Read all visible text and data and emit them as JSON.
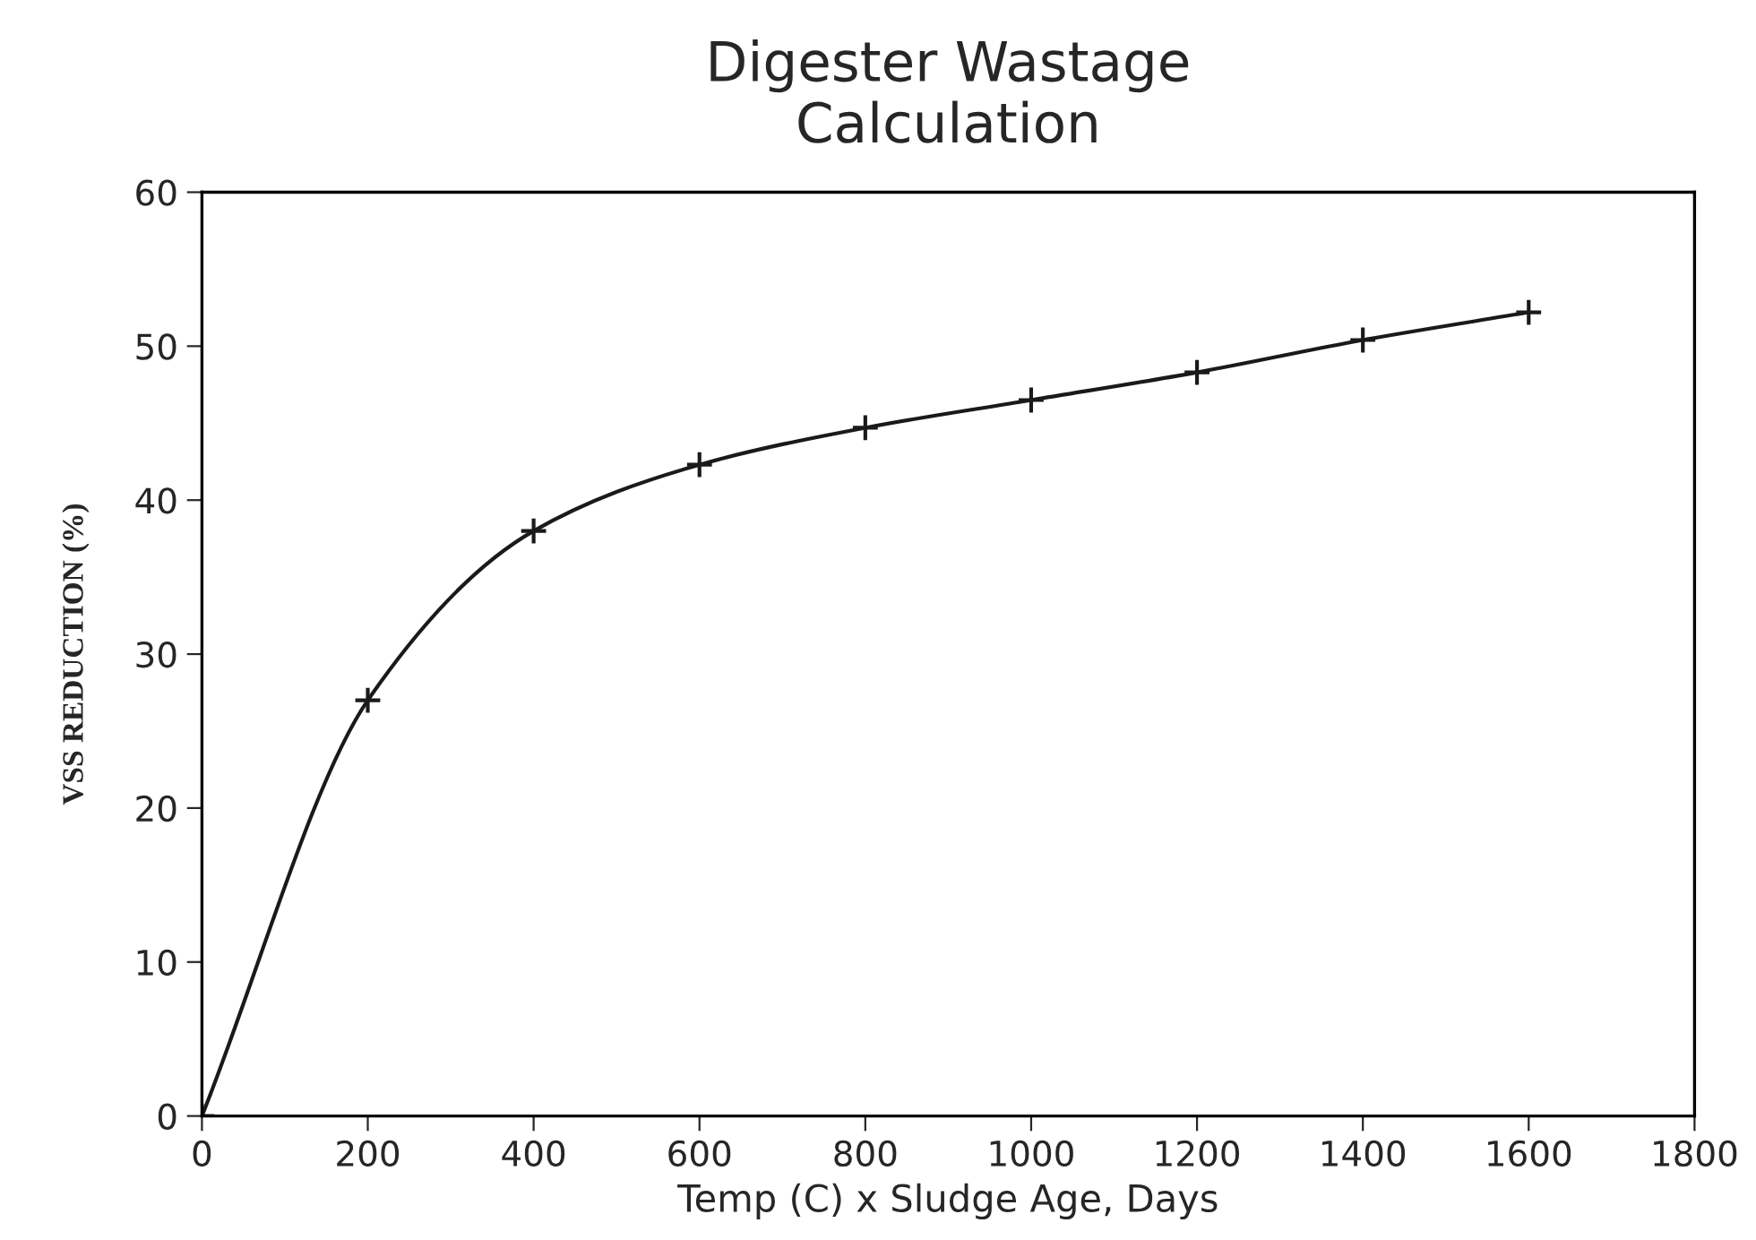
{
  "chart_data": {
    "type": "line",
    "title": "Digester Wastage\nCalculation",
    "xlabel": "Temp (C) x Sludge Age, Days",
    "ylabel": "VSS REDUCTION (%)",
    "x": [
      0,
      200,
      400,
      600,
      800,
      1000,
      1200,
      1400,
      1600
    ],
    "series": [
      {
        "color": "#1a1a1a",
        "values": [
          0,
          27,
          38,
          42.3,
          44.7,
          46.5,
          48.3,
          50.4,
          52.2
        ]
      }
    ],
    "xlim": [
      0,
      1800
    ],
    "xticks": [
      0,
      200,
      400,
      600,
      800,
      1000,
      1200,
      1400,
      1600,
      1800
    ],
    "ylim": [
      0,
      60
    ],
    "yticks": [
      0,
      10,
      20,
      30,
      40,
      50,
      60
    ],
    "marker": "cross",
    "line_style": "solid",
    "grid": false,
    "legend": false
  }
}
